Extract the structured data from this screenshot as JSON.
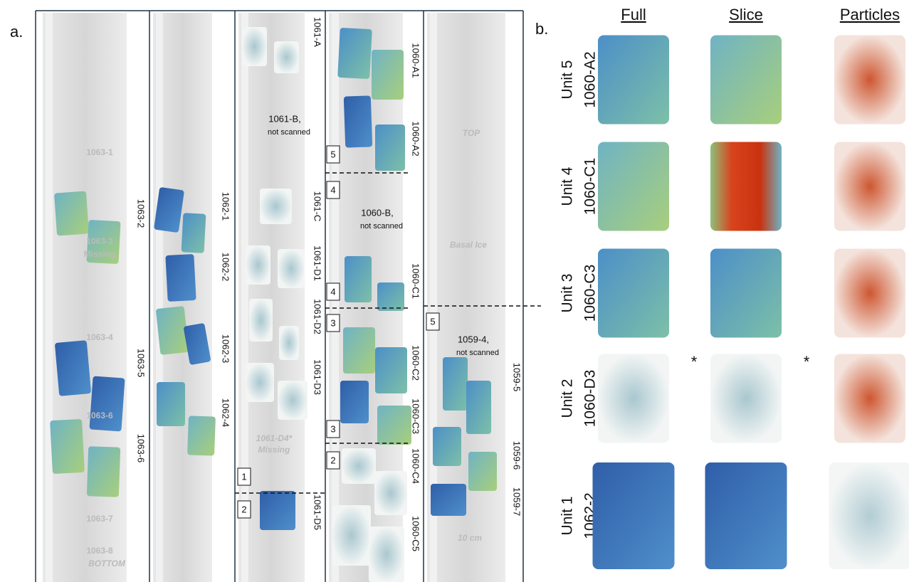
{
  "panel_a": {
    "label": "a.",
    "core_labels": [
      "1063-2",
      "1063-5",
      "1063-6",
      "1062-1",
      "1062-2",
      "1062-3",
      "1062-4",
      "1061-A",
      "1061-C",
      "1061-D1",
      "1061-D2",
      "1061-D3",
      "1061-D5",
      "1060-A1",
      "1060-A2",
      "1060-C1",
      "1060-C2",
      "1060-C3",
      "1060-C4",
      "1060-C5",
      "1059-5",
      "1059-6",
      "1059-7"
    ],
    "notes": [
      {
        "name": "1061-B,",
        "status": "not scanned"
      },
      {
        "name": "1060-B,",
        "status": "not scanned"
      },
      {
        "name": "1059-4,",
        "status": "not scanned"
      }
    ],
    "unit_boxes": [
      "5",
      "4",
      "4",
      "3",
      "3",
      "2",
      "1",
      "2",
      "5"
    ],
    "photo_labels": [
      "1063-1",
      "1063-3",
      "Missing",
      "1063-4",
      "1063-6",
      "1063-7",
      "1063-8",
      "BOTTOM",
      "TOP",
      "Basal Ice",
      "10 cm",
      "1061-D4*",
      "Missing"
    ]
  },
  "panel_b": {
    "label": "b.",
    "headers": [
      "Full",
      "Slice",
      "Particles"
    ],
    "rows": [
      {
        "unit": "Unit 5",
        "sample": "1060-A2"
      },
      {
        "unit": "Unit 4",
        "sample": "1060-C1"
      },
      {
        "unit": "Unit 3",
        "sample": "1060-C3"
      },
      {
        "unit": "Unit 2",
        "sample": "1060-D3"
      },
      {
        "unit": "Unit 1",
        "sample": "1062-2"
      }
    ],
    "asterisks": [
      "*",
      "*"
    ]
  }
}
